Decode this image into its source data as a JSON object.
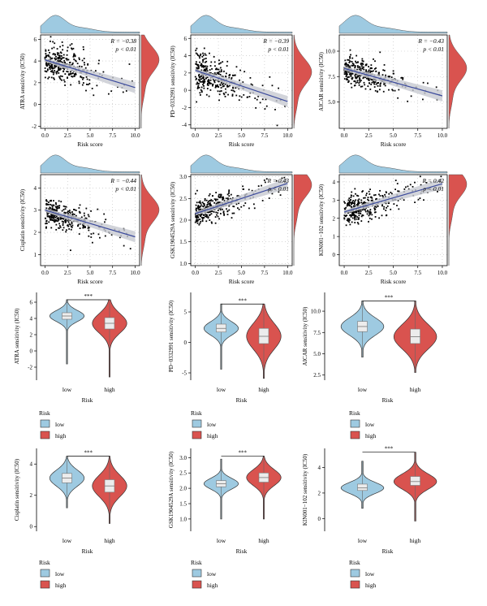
{
  "colors": {
    "low": "#9ecae1",
    "high": "#d9534f",
    "points": "#000000",
    "trend": "#3b4a9c",
    "band": "#c7c9d1",
    "grid": "#bdbdbd"
  },
  "chart_data": [
    {
      "id": "sc1",
      "type": "scatter",
      "xlabel": "Risk score",
      "ylabel": "ATRA sensitivity (IC50)",
      "xlim": [
        -0.5,
        10.5
      ],
      "ylim": [
        -2.2,
        6.4
      ],
      "xticks": [
        "0.0",
        "2.5",
        "5.0",
        "7.5",
        "10.0"
      ],
      "xtickvals": [
        0,
        2.5,
        5,
        7.5,
        10
      ],
      "yticks": [
        "-2",
        "0",
        "2",
        "4",
        "6"
      ],
      "ytickvals": [
        -2,
        0,
        2,
        4,
        6
      ],
      "annotation": {
        "r": "R = −0.38",
        "p": "p < 0.01"
      },
      "trend": {
        "x": [
          0,
          10
        ],
        "y": [
          4.1,
          1.55
        ]
      },
      "seed": 11,
      "noise": 1.4,
      "grid": true
    },
    {
      "id": "sc2",
      "type": "scatter",
      "xlabel": "Risk score",
      "ylabel": "PD−0332991 sensitivity (IC50)",
      "xlim": [
        -0.5,
        10.5
      ],
      "ylim": [
        -4.4,
        6.4
      ],
      "xticks": [
        "0.0",
        "2.5",
        "5.0",
        "7.5",
        "10.0"
      ],
      "xtickvals": [
        0,
        2.5,
        5,
        7.5,
        10
      ],
      "yticks": [
        "-4",
        "-2",
        "0",
        "2",
        "4",
        "6"
      ],
      "ytickvals": [
        -4,
        -2,
        0,
        2,
        4,
        6
      ],
      "annotation": {
        "r": "R = −0.39",
        "p": "p < 0.01"
      },
      "trend": {
        "x": [
          0,
          10
        ],
        "y": [
          2.3,
          -1.3
        ]
      },
      "seed": 23,
      "noise": 2.0,
      "grid": true
    },
    {
      "id": "sc3",
      "type": "scatter",
      "xlabel": "Risk score",
      "ylabel": "AICAR sensitivity (IC50)",
      "xlim": [
        -0.5,
        10.5
      ],
      "ylim": [
        2.4,
        11.6
      ],
      "xticks": [
        "0.0",
        "2.5",
        "5.0",
        "7.5",
        "10.0"
      ],
      "xtickvals": [
        0,
        2.5,
        5,
        7.5,
        10
      ],
      "yticks": [
        "5.0",
        "7.5",
        "10.0"
      ],
      "ytickvals": [
        5,
        7.5,
        10
      ],
      "annotation": {
        "r": "R = −0.43",
        "p": "p < 0.01"
      },
      "trend": {
        "x": [
          0,
          10
        ],
        "y": [
          8.3,
          5.6
        ]
      },
      "seed": 37,
      "noise": 1.3,
      "grid": true
    },
    {
      "id": "sc4",
      "type": "scatter",
      "xlabel": "Risk score",
      "ylabel": "Cisplatin sensitivity (IC50)",
      "xlim": [
        -0.5,
        10.5
      ],
      "ylim": [
        0.5,
        4.6
      ],
      "xticks": [
        "0.0",
        "2.5",
        "5.0",
        "7.5",
        "10.0"
      ],
      "xtickvals": [
        0,
        2.5,
        5,
        7.5,
        10
      ],
      "yticks": [
        "1",
        "2",
        "3",
        "4"
      ],
      "ytickvals": [
        1,
        2,
        3,
        4
      ],
      "annotation": {
        "r": "R = −0.44",
        "p": "p < 0.01"
      },
      "trend": {
        "x": [
          0,
          10
        ],
        "y": [
          3.0,
          1.8
        ]
      },
      "seed": 41,
      "noise": 0.6,
      "grid": true
    },
    {
      "id": "sc5",
      "type": "scatter",
      "xlabel": "Risk score",
      "ylabel": "GSK1904529A sensitivity (IC50)",
      "xlim": [
        -0.5,
        10.5
      ],
      "ylim": [
        0.95,
        3.05
      ],
      "xticks": [
        "0.0",
        "2.5",
        "5.0",
        "7.5",
        "10.0"
      ],
      "xtickvals": [
        0,
        2.5,
        5,
        7.5,
        10
      ],
      "yticks": [
        "1.0",
        "1.5",
        "2.0",
        "2.5",
        "3.0"
      ],
      "ytickvals": [
        1,
        1.5,
        2,
        2.5,
        3
      ],
      "annotation": {
        "r": "R = 0.43",
        "p": "p < 0.01"
      },
      "trend": {
        "x": [
          0,
          10
        ],
        "y": [
          2.15,
          2.85
        ]
      },
      "seed": 53,
      "noise": 0.3,
      "grid": true
    },
    {
      "id": "sc6",
      "type": "scatter",
      "xlabel": "Risk score",
      "ylabel": "KIN001−102 sensitivity (IC50)",
      "xlim": [
        -0.5,
        10.5
      ],
      "ylim": [
        -0.6,
        4.4
      ],
      "xticks": [
        "0.0",
        "2.5",
        "5.0",
        "7.5",
        "10.0"
      ],
      "xtickvals": [
        0,
        2.5,
        5,
        7.5,
        10
      ],
      "yticks": [
        "0",
        "1",
        "2",
        "3",
        "4"
      ],
      "ytickvals": [
        0,
        1,
        2,
        3,
        4
      ],
      "annotation": {
        "r": "R = 0.42",
        "p": "p < 0.01"
      },
      "trend": {
        "x": [
          0,
          10
        ],
        "y": [
          2.35,
          3.9
        ]
      },
      "seed": 67,
      "noise": 0.7,
      "grid": true
    },
    {
      "id": "v1",
      "type": "violin",
      "xlabel": "Risk",
      "ylabel": "ATRA sensitivity (IC50)",
      "categories": [
        "low",
        "high"
      ],
      "ylim": [
        -3.6,
        7.2
      ],
      "yticks": [
        "-2",
        "0",
        "2",
        "4",
        "6"
      ],
      "ytickvals": [
        -2,
        0,
        2,
        4,
        6
      ],
      "significance": "***",
      "series": [
        {
          "name": "low",
          "median": 4.3,
          "q1": 3.9,
          "q3": 4.7,
          "min": -1.6,
          "max": 6.3
        },
        {
          "name": "high",
          "median": 3.4,
          "q1": 2.7,
          "q3": 4.1,
          "min": -3.2,
          "max": 6.3
        }
      ]
    },
    {
      "id": "v2",
      "type": "violin",
      "xlabel": "Risk",
      "ylabel": "PD−0332991 sensitivity (IC50)",
      "categories": [
        "low",
        "high"
      ],
      "ylim": [
        -6.2,
        8.2
      ],
      "yticks": [
        "-5",
        "0",
        "5"
      ],
      "ytickvals": [
        -5,
        0,
        5
      ],
      "significance": "***",
      "series": [
        {
          "name": "low",
          "median": 2.3,
          "q1": 1.7,
          "q3": 3.0,
          "min": -4.4,
          "max": 6.3
        },
        {
          "name": "high",
          "median": 1.0,
          "q1": -0.2,
          "q3": 2.3,
          "min": -5.9,
          "max": 6.3
        }
      ]
    },
    {
      "id": "v3",
      "type": "violin",
      "xlabel": "Risk",
      "ylabel": "AICAR sensitivity (IC50)",
      "categories": [
        "low",
        "high"
      ],
      "ylim": [
        1.9,
        12.2
      ],
      "yticks": [
        "2.5",
        "5.0",
        "7.5",
        "10.0"
      ],
      "ytickvals": [
        2.5,
        5,
        7.5,
        10
      ],
      "significance": "***",
      "series": [
        {
          "name": "low",
          "median": 8.2,
          "q1": 7.6,
          "q3": 8.8,
          "min": 4.6,
          "max": 11.2
        },
        {
          "name": "high",
          "median": 7.0,
          "q1": 6.2,
          "q3": 7.9,
          "min": 2.8,
          "max": 11.2
        }
      ]
    },
    {
      "id": "v4",
      "type": "violin",
      "xlabel": "Risk",
      "ylabel": "Cisplatin sensitivity (IC50)",
      "categories": [
        "low",
        "high"
      ],
      "ylim": [
        -0.3,
        5.0
      ],
      "yticks": [
        "0",
        "2",
        "4"
      ],
      "ytickvals": [
        0,
        2,
        4
      ],
      "significance": "***",
      "series": [
        {
          "name": "low",
          "median": 3.1,
          "q1": 2.8,
          "q3": 3.4,
          "min": 1.2,
          "max": 4.5
        },
        {
          "name": "high",
          "median": 2.6,
          "q1": 2.2,
          "q3": 3.0,
          "min": 0.2,
          "max": 4.5
        }
      ]
    },
    {
      "id": "v5",
      "type": "violin",
      "xlabel": "Risk",
      "ylabel": "GSK1904529A sensitivity (IC50)",
      "categories": [
        "low",
        "high"
      ],
      "ylim": [
        0.6,
        3.3
      ],
      "yticks": [
        "1.0",
        "1.5",
        "2.0",
        "2.5",
        "3.0"
      ],
      "ytickvals": [
        1,
        1.5,
        2,
        2.5,
        3
      ],
      "significance": "***",
      "series": [
        {
          "name": "low",
          "median": 2.15,
          "q1": 2.05,
          "q3": 2.25,
          "min": 1.0,
          "max": 2.95
        },
        {
          "name": "high",
          "median": 2.35,
          "q1": 2.2,
          "q3": 2.5,
          "min": 1.0,
          "max": 3.05
        }
      ]
    },
    {
      "id": "v6",
      "type": "violin",
      "xlabel": "Risk",
      "ylabel": "KIN001−102 sensitivity (IC50)",
      "categories": [
        "low",
        "high"
      ],
      "ylim": [
        -1.0,
        5.5
      ],
      "yticks": [
        "0",
        "2",
        "4"
      ],
      "ytickvals": [
        0,
        2,
        4
      ],
      "significance": "***",
      "series": [
        {
          "name": "low",
          "median": 2.4,
          "q1": 2.2,
          "q3": 2.7,
          "min": 0.8,
          "max": 4.5
        },
        {
          "name": "high",
          "median": 2.9,
          "q1": 2.6,
          "q3": 3.3,
          "min": -0.2,
          "max": 5.2
        }
      ]
    }
  ],
  "legend": {
    "title": "Risk",
    "items": [
      "low",
      "high"
    ]
  }
}
